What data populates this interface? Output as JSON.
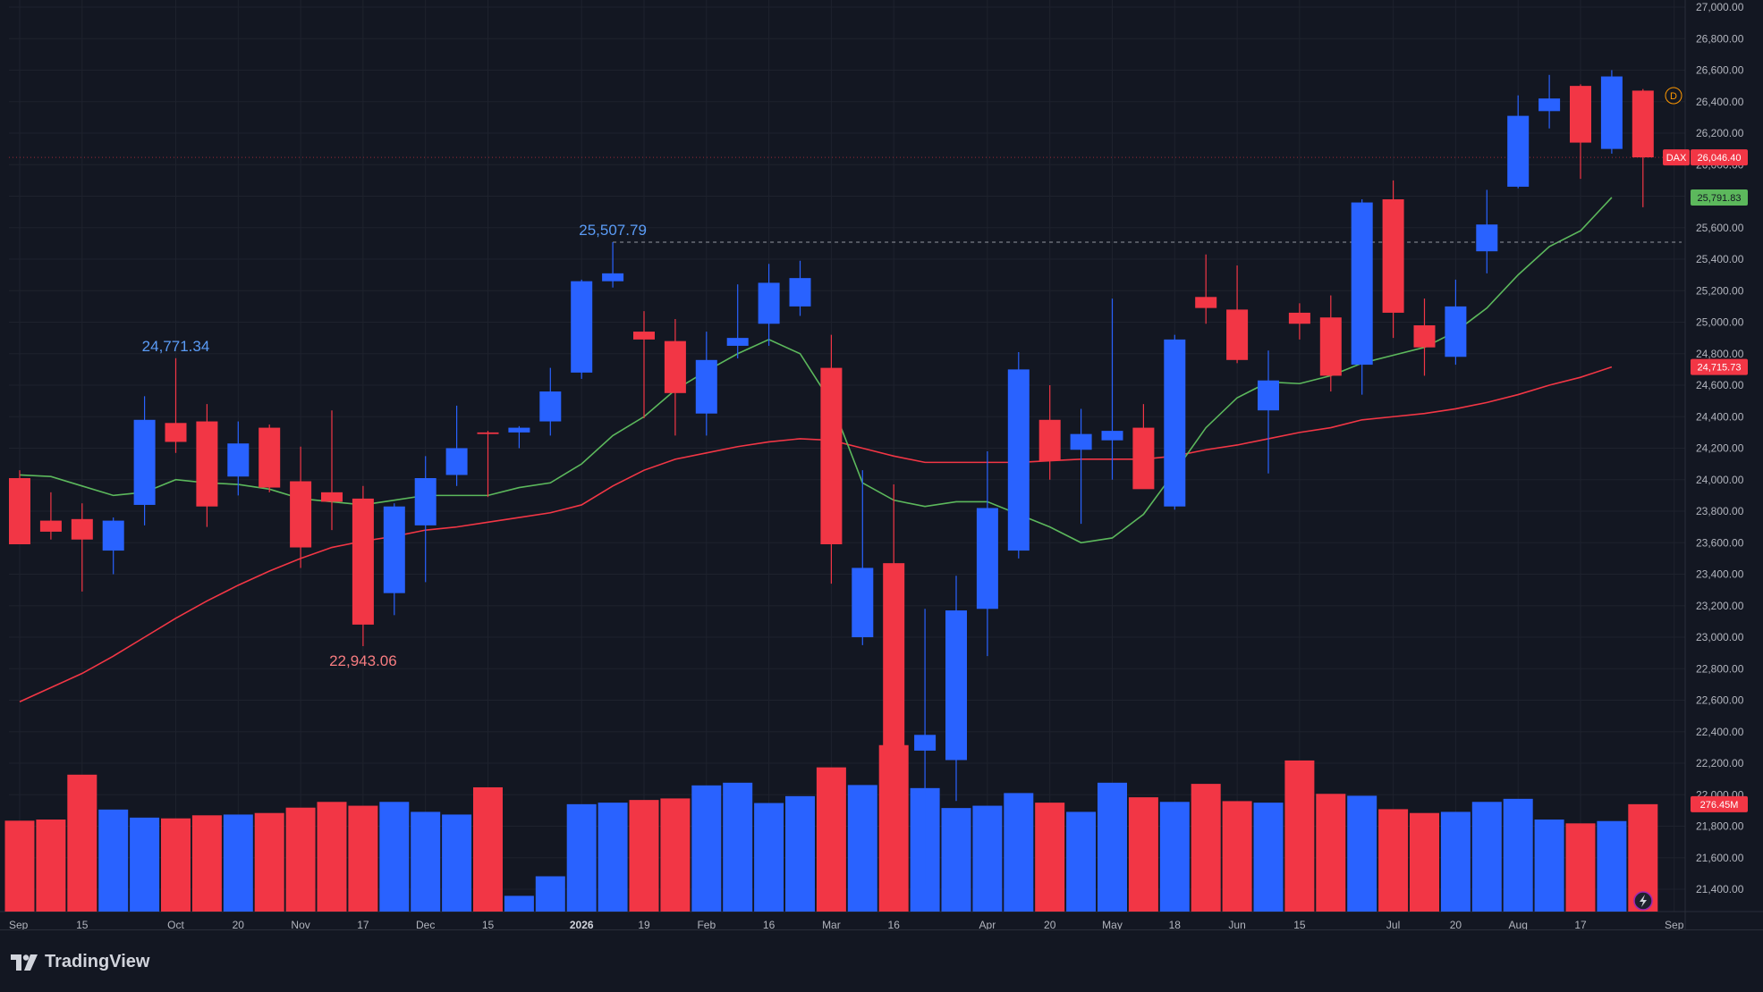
{
  "brand": {
    "name": "TradingView",
    "icon": "tradingview-logo-icon"
  },
  "colors": {
    "background": "#131722",
    "up": "#2962ff",
    "down": "#f23645",
    "ma_fast": "#5cb85c",
    "ma_slow": "#f23645",
    "annotation_high": "#5b9cf6",
    "annotation_low": "#f77c80",
    "grid": "#1e222d",
    "axis_text": "#b2b5be",
    "reference_line": "#9598a1"
  },
  "chart_data": {
    "type": "candlestick",
    "symbol": "DAX",
    "interval_marker": "D",
    "y_axis": {
      "range": [
        21260,
        27000
      ],
      "step": 200,
      "position": "right",
      "format": "thousands-comma-2-decimals"
    },
    "x_axis": {
      "labels": [
        {
          "label": "Sep",
          "i": 0,
          "bold": false
        },
        {
          "label": "15",
          "i": 2,
          "bold": false
        },
        {
          "label": "Oct",
          "i": 5,
          "bold": false
        },
        {
          "label": "20",
          "i": 7,
          "bold": false
        },
        {
          "label": "Nov",
          "i": 9,
          "bold": false
        },
        {
          "label": "17",
          "i": 11,
          "bold": false
        },
        {
          "label": "Dec",
          "i": 13,
          "bold": false
        },
        {
          "label": "15",
          "i": 15,
          "bold": false
        },
        {
          "label": "2026",
          "i": 18,
          "bold": true
        },
        {
          "label": "19",
          "i": 20,
          "bold": false
        },
        {
          "label": "Feb",
          "i": 22,
          "bold": false
        },
        {
          "label": "16",
          "i": 24,
          "bold": false
        },
        {
          "label": "Mar",
          "i": 26,
          "bold": false
        },
        {
          "label": "16",
          "i": 28,
          "bold": false
        },
        {
          "label": "Apr",
          "i": 31,
          "bold": false
        },
        {
          "label": "20",
          "i": 33,
          "bold": false
        },
        {
          "label": "May",
          "i": 35,
          "bold": false
        },
        {
          "label": "18",
          "i": 37,
          "bold": false
        },
        {
          "label": "Jun",
          "i": 39,
          "bold": false
        },
        {
          "label": "15",
          "i": 41,
          "bold": false
        },
        {
          "label": "Jul",
          "i": 44,
          "bold": false
        },
        {
          "label": "20",
          "i": 46,
          "bold": false
        },
        {
          "label": "Aug",
          "i": 48,
          "bold": false
        },
        {
          "label": "17",
          "i": 50,
          "bold": false
        },
        {
          "label": "Sep",
          "i": 53,
          "bold": false
        }
      ]
    },
    "candles": [
      {
        "o": 24010,
        "h": 24060,
        "l": 23600,
        "c": 23590
      },
      {
        "o": 23740,
        "h": 23920,
        "l": 23620,
        "c": 23670
      },
      {
        "o": 23750,
        "h": 23850,
        "l": 23290,
        "c": 23620
      },
      {
        "o": 23550,
        "h": 23760,
        "l": 23400,
        "c": 23740
      },
      {
        "o": 23840,
        "h": 24530,
        "l": 23710,
        "c": 24380
      },
      {
        "o": 24360,
        "h": 24771.34,
        "l": 24170,
        "c": 24240
      },
      {
        "o": 24370,
        "h": 24480,
        "l": 23700,
        "c": 23830
      },
      {
        "o": 24020,
        "h": 24370,
        "l": 23900,
        "c": 24230
      },
      {
        "o": 24330,
        "h": 24350,
        "l": 23920,
        "c": 23950
      },
      {
        "o": 23990,
        "h": 24210,
        "l": 23440,
        "c": 23570
      },
      {
        "o": 23920,
        "h": 24440,
        "l": 23680,
        "c": 23860
      },
      {
        "o": 23880,
        "h": 23960,
        "l": 22943.06,
        "c": 23080
      },
      {
        "o": 23280,
        "h": 23850,
        "l": 23140,
        "c": 23830
      },
      {
        "o": 23710,
        "h": 24150,
        "l": 23350,
        "c": 24010
      },
      {
        "o": 24030,
        "h": 24470,
        "l": 23960,
        "c": 24200
      },
      {
        "o": 24300,
        "h": 24310,
        "l": 23890,
        "c": 24290
      },
      {
        "o": 24300,
        "h": 24340,
        "l": 24200,
        "c": 24330
      },
      {
        "o": 24370,
        "h": 24710,
        "l": 24280,
        "c": 24560
      },
      {
        "o": 24680,
        "h": 25270,
        "l": 24640,
        "c": 25260
      },
      {
        "o": 25260,
        "h": 25507.79,
        "l": 25220,
        "c": 25310
      },
      {
        "o": 24940,
        "h": 25070,
        "l": 24390,
        "c": 24890
      },
      {
        "o": 24880,
        "h": 25020,
        "l": 24280,
        "c": 24550
      },
      {
        "o": 24420,
        "h": 24940,
        "l": 24280,
        "c": 24760
      },
      {
        "o": 24850,
        "h": 25240,
        "l": 24770,
        "c": 24900
      },
      {
        "o": 24990,
        "h": 25370,
        "l": 24850,
        "c": 25250
      },
      {
        "o": 25100,
        "h": 25390,
        "l": 25040,
        "c": 25280
      },
      {
        "o": 24710,
        "h": 24920,
        "l": 23340,
        "c": 23590
      },
      {
        "o": 23000,
        "h": 24060,
        "l": 22950,
        "c": 23440
      },
      {
        "o": 23470,
        "h": 23970,
        "l": 22000,
        "c": 22250
      },
      {
        "o": 22280,
        "h": 23180,
        "l": 21430,
        "c": 22380
      },
      {
        "o": 22220,
        "h": 23390,
        "l": 21960,
        "c": 23170
      },
      {
        "o": 23180,
        "h": 24180,
        "l": 22880,
        "c": 23820
      },
      {
        "o": 23550,
        "h": 24810,
        "l": 23500,
        "c": 24700
      },
      {
        "o": 24380,
        "h": 24600,
        "l": 24000,
        "c": 24120
      },
      {
        "o": 24190,
        "h": 24450,
        "l": 23720,
        "c": 24290
      },
      {
        "o": 24250,
        "h": 25150,
        "l": 24000,
        "c": 24310
      },
      {
        "o": 24330,
        "h": 24480,
        "l": 23960,
        "c": 23940
      },
      {
        "o": 23830,
        "h": 24920,
        "l": 23810,
        "c": 24890
      },
      {
        "o": 25160,
        "h": 25430,
        "l": 24990,
        "c": 25090
      },
      {
        "o": 25080,
        "h": 25360,
        "l": 24740,
        "c": 24760
      },
      {
        "o": 24440,
        "h": 24820,
        "l": 24040,
        "c": 24630
      },
      {
        "o": 25060,
        "h": 25120,
        "l": 24890,
        "c": 24990
      },
      {
        "o": 25030,
        "h": 25170,
        "l": 24560,
        "c": 24660
      },
      {
        "o": 24730,
        "h": 25780,
        "l": 24540,
        "c": 25760
      },
      {
        "o": 25780,
        "h": 25900,
        "l": 24900,
        "c": 25060
      },
      {
        "o": 24980,
        "h": 25150,
        "l": 24660,
        "c": 24840
      },
      {
        "o": 24780,
        "h": 25270,
        "l": 24730,
        "c": 25100
      },
      {
        "o": 25450,
        "h": 25840,
        "l": 25310,
        "c": 25620
      },
      {
        "o": 25860,
        "h": 26440,
        "l": 25850,
        "c": 26310
      },
      {
        "o": 26340,
        "h": 26570,
        "l": 26230,
        "c": 26420
      },
      {
        "o": 26500,
        "h": 26510,
        "l": 25910,
        "c": 26140
      },
      {
        "o": 26100,
        "h": 26600,
        "l": 26070,
        "c": 26560
      },
      {
        "o": 26470,
        "h": 26480,
        "l": 25730,
        "c": 26046.4
      }
    ],
    "volume": {
      "max": 2680,
      "unit": "M",
      "last_value_label": "276.45M",
      "values": [
        1185,
        1200,
        1785,
        1330,
        1225,
        1215,
        1255,
        1265,
        1285,
        1355,
        1430,
        1380,
        1430,
        1300,
        1265,
        1620,
        205,
        460,
        1400,
        1420,
        1455,
        1475,
        1645,
        1680,
        1415,
        1505,
        1880,
        1650,
        2170,
        1610,
        1350,
        1380,
        1545,
        1420,
        1300,
        1680,
        1490,
        1430,
        1665,
        1440,
        1420,
        1970,
        1535,
        1510,
        1335,
        1285,
        1300,
        1430,
        1470,
        1200,
        1150,
        1180,
        1400
      ]
    },
    "ma_fast": {
      "period": 10,
      "last_value": 25791.83,
      "values": [
        24030,
        24020,
        23960,
        23900,
        23920,
        24000,
        23980,
        23970,
        23940,
        23880,
        23860,
        23840,
        23870,
        23900,
        23900,
        23900,
        23950,
        23980,
        24100,
        24280,
        24400,
        24570,
        24690,
        24800,
        24890,
        24800,
        24490,
        23980,
        23870,
        23830,
        23860,
        23860,
        23780,
        23700,
        23600,
        23630,
        23780,
        24050,
        24330,
        24520,
        24620,
        24610,
        24660,
        24740,
        24790,
        24840,
        24940,
        25090,
        25300,
        25480,
        25580,
        25791.83
      ]
    },
    "ma_slow": {
      "period": 50,
      "last_value": 24715.73,
      "values": [
        22590,
        22680,
        22770,
        22880,
        23000,
        23120,
        23230,
        23330,
        23420,
        23500,
        23570,
        23610,
        23640,
        23680,
        23700,
        23730,
        23760,
        23790,
        23840,
        23960,
        24060,
        24130,
        24170,
        24210,
        24240,
        24260,
        24250,
        24200,
        24150,
        24110,
        24110,
        24110,
        24110,
        24120,
        24130,
        24130,
        24130,
        24150,
        24190,
        24220,
        24260,
        24300,
        24330,
        24380,
        24400,
        24420,
        24450,
        24490,
        24540,
        24600,
        24650,
        24715.73
      ]
    },
    "annotations": [
      {
        "label": "24,771.34",
        "i": 5,
        "value": 24771.34,
        "kind": "high"
      },
      {
        "label": "22,943.06",
        "i": 11,
        "value": 22943.06,
        "kind": "low"
      },
      {
        "label": "25,507.79",
        "i": 19,
        "value": 25507.79,
        "kind": "high"
      }
    ],
    "reference_line": {
      "value": 25507.79,
      "from_i": 19
    },
    "price_labels": [
      {
        "text": "DAX",
        "value": 26046.4,
        "color": "#f23645",
        "type": "symbol"
      },
      {
        "text": "26,046.40",
        "value": 26046.4,
        "color": "#f23645",
        "type": "price"
      },
      {
        "text": "25,791.83",
        "value": 25791.83,
        "color": "#5cb85c",
        "type": "price"
      },
      {
        "text": "24,715.73",
        "value": 24715.73,
        "color": "#f23645",
        "type": "price"
      }
    ]
  }
}
